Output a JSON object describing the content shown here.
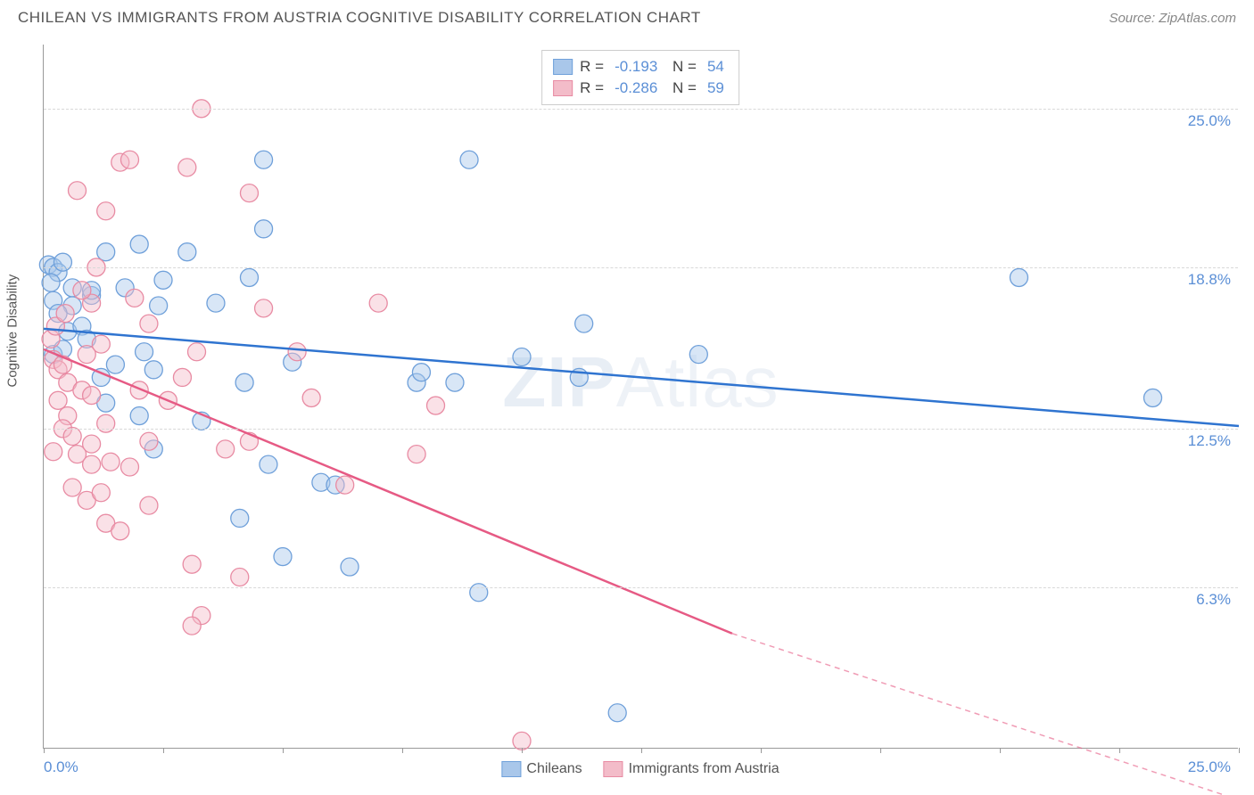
{
  "header": {
    "title": "CHILEAN VS IMMIGRANTS FROM AUSTRIA COGNITIVE DISABILITY CORRELATION CHART",
    "source": "Source: ZipAtlas.com"
  },
  "watermark": {
    "pre": "ZIP",
    "post": "Atlas"
  },
  "chart": {
    "type": "scatter",
    "y_axis_title": "Cognitive Disability",
    "background_color": "#ffffff",
    "grid_color": "#d8d8d8",
    "axis_color": "#999999",
    "tick_label_color": "#5b8fd6",
    "xlim": [
      0,
      25
    ],
    "ylim": [
      0,
      27.5
    ],
    "x_ticks": [
      0,
      2.5,
      5,
      7.5,
      10,
      12.5,
      15,
      17.5,
      20,
      22.5,
      25
    ],
    "x_tick_labels": {
      "0": "0.0%",
      "25": "25.0%"
    },
    "y_gridlines": [
      6.3,
      12.5,
      18.8,
      25.0
    ],
    "y_tick_labels": [
      "6.3%",
      "12.5%",
      "18.8%",
      "25.0%"
    ],
    "marker_radius": 10,
    "marker_opacity": 0.45,
    "line_width": 2.5,
    "series": [
      {
        "name": "Chileans",
        "label": "Chileans",
        "fill_color": "#a9c7ea",
        "stroke_color": "#6fa0da",
        "line_color": "#2f74d0",
        "R": "-0.193",
        "N": "54",
        "trend": {
          "x1": 0,
          "y1": 16.4,
          "x2": 25,
          "y2": 12.6,
          "dashed_from_x": 25
        },
        "points": [
          [
            0.1,
            18.9
          ],
          [
            0.2,
            18.8
          ],
          [
            0.3,
            18.6
          ],
          [
            0.2,
            17.5
          ],
          [
            0.6,
            17.3
          ],
          [
            0.5,
            16.3
          ],
          [
            0.2,
            15.4
          ],
          [
            0.4,
            15.6
          ],
          [
            1.0,
            17.7
          ],
          [
            1.3,
            19.4
          ],
          [
            1.7,
            18.0
          ],
          [
            2.0,
            19.7
          ],
          [
            2.4,
            17.3
          ],
          [
            2.5,
            18.3
          ],
          [
            3.0,
            19.4
          ],
          [
            2.3,
            14.8
          ],
          [
            1.2,
            14.5
          ],
          [
            1.3,
            13.5
          ],
          [
            2.1,
            15.5
          ],
          [
            3.6,
            17.4
          ],
          [
            4.6,
            20.3
          ],
          [
            4.6,
            23.0
          ],
          [
            4.2,
            14.3
          ],
          [
            3.3,
            12.8
          ],
          [
            2.3,
            11.7
          ],
          [
            4.7,
            11.1
          ],
          [
            4.3,
            18.4
          ],
          [
            5.2,
            15.1
          ],
          [
            4.1,
            9.0
          ],
          [
            5.0,
            7.5
          ],
          [
            5.8,
            10.4
          ],
          [
            6.1,
            10.3
          ],
          [
            6.4,
            7.1
          ],
          [
            7.8,
            14.3
          ],
          [
            7.9,
            14.7
          ],
          [
            8.6,
            14.3
          ],
          [
            8.9,
            23.0
          ],
          [
            9.1,
            6.1
          ],
          [
            10.0,
            15.3
          ],
          [
            11.2,
            14.5
          ],
          [
            11.3,
            16.6
          ],
          [
            12.0,
            1.4
          ],
          [
            13.7,
            15.4
          ],
          [
            20.4,
            18.4
          ],
          [
            23.2,
            13.7
          ],
          [
            0.4,
            19.0
          ],
          [
            0.3,
            17.0
          ],
          [
            0.8,
            16.5
          ],
          [
            1.0,
            17.9
          ],
          [
            0.9,
            16.0
          ],
          [
            0.6,
            18.0
          ],
          [
            0.15,
            18.2
          ],
          [
            1.5,
            15.0
          ],
          [
            2.0,
            13.0
          ]
        ]
      },
      {
        "name": "Immigrants from Austria",
        "label": "Immigrants from Austria",
        "fill_color": "#f3bcc9",
        "stroke_color": "#e88ba3",
        "line_color": "#e65a84",
        "R": "-0.286",
        "N": "59",
        "trend": {
          "x1": 0,
          "y1": 15.6,
          "x2": 14.4,
          "y2": 4.5,
          "dashed_from_x": 14.4,
          "dash_x2": 25,
          "dash_y2": -2.0
        },
        "points": [
          [
            0.2,
            15.2
          ],
          [
            0.3,
            14.8
          ],
          [
            0.4,
            15.0
          ],
          [
            0.5,
            14.3
          ],
          [
            0.3,
            13.6
          ],
          [
            0.5,
            13.0
          ],
          [
            0.4,
            12.5
          ],
          [
            0.6,
            12.2
          ],
          [
            0.2,
            11.6
          ],
          [
            0.7,
            11.5
          ],
          [
            0.8,
            14.0
          ],
          [
            1.0,
            13.8
          ],
          [
            0.9,
            15.4
          ],
          [
            1.2,
            15.8
          ],
          [
            1.0,
            17.4
          ],
          [
            0.8,
            17.9
          ],
          [
            1.1,
            18.8
          ],
          [
            1.3,
            21.0
          ],
          [
            0.7,
            21.8
          ],
          [
            1.6,
            22.9
          ],
          [
            1.8,
            23.0
          ],
          [
            1.9,
            17.6
          ],
          [
            2.2,
            16.6
          ],
          [
            2.0,
            14.0
          ],
          [
            1.3,
            12.7
          ],
          [
            1.0,
            11.9
          ],
          [
            1.4,
            11.2
          ],
          [
            1.0,
            11.1
          ],
          [
            1.8,
            11.0
          ],
          [
            0.6,
            10.2
          ],
          [
            0.9,
            9.7
          ],
          [
            1.2,
            10.0
          ],
          [
            1.3,
            8.8
          ],
          [
            1.6,
            8.5
          ],
          [
            2.2,
            9.5
          ],
          [
            2.2,
            12.0
          ],
          [
            2.6,
            13.6
          ],
          [
            2.9,
            14.5
          ],
          [
            3.2,
            15.5
          ],
          [
            3.0,
            22.7
          ],
          [
            3.3,
            25.0
          ],
          [
            3.8,
            11.7
          ],
          [
            3.1,
            7.2
          ],
          [
            3.3,
            5.2
          ],
          [
            3.1,
            4.8
          ],
          [
            4.3,
            21.7
          ],
          [
            4.6,
            17.2
          ],
          [
            4.3,
            12.0
          ],
          [
            4.1,
            6.7
          ],
          [
            5.6,
            13.7
          ],
          [
            5.3,
            15.5
          ],
          [
            6.3,
            10.3
          ],
          [
            7.0,
            17.4
          ],
          [
            7.8,
            11.5
          ],
          [
            8.2,
            13.4
          ],
          [
            10.0,
            0.3
          ],
          [
            0.15,
            16.0
          ],
          [
            0.25,
            16.5
          ],
          [
            0.45,
            17.0
          ]
        ]
      }
    ],
    "legend_bottom": [
      {
        "label": "Chileans",
        "fill": "#a9c7ea",
        "stroke": "#6fa0da"
      },
      {
        "label": "Immigrants from Austria",
        "fill": "#f3bcc9",
        "stroke": "#e88ba3"
      }
    ]
  }
}
